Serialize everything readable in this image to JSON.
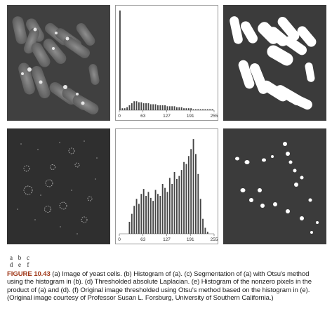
{
  "figure": {
    "label": "FIGURE 10.43",
    "caption": "(a) Image of yeast cells. (b) Histogram of (a). (c) Segmentation of (a) with Otsu's method using the histogram in (b). (d) Thresholded absolute Laplacian. (e) Histogram of the nonzero pixels in the product of (a) and (d). (f) Original image thresholded using Otsu's method based on the histogram in (e). (Original image courtesy of Professor Susan L. Forsburg, University of Southern California.)",
    "panel_legend": [
      "a",
      "b",
      "c",
      "d",
      "e",
      "f"
    ]
  },
  "chart_data": [
    {
      "type": "bar",
      "panel": "b",
      "x_ticks": [
        "0",
        "63",
        "127",
        "191",
        "255"
      ],
      "xlim": [
        0,
        255
      ],
      "values": [
        1.0,
        0.02,
        0.02,
        0.03,
        0.05,
        0.07,
        0.09,
        0.09,
        0.08,
        0.08,
        0.07,
        0.07,
        0.07,
        0.06,
        0.06,
        0.06,
        0.05,
        0.05,
        0.05,
        0.05,
        0.04,
        0.04,
        0.04,
        0.04,
        0.03,
        0.03,
        0.03,
        0.02,
        0.02,
        0.02,
        0.02,
        0.01,
        0.01,
        0.01,
        0.01,
        0.01,
        0.01,
        0.01,
        0.01,
        0.01
      ]
    },
    {
      "type": "bar",
      "panel": "e",
      "x_ticks": [
        "0",
        "63",
        "127",
        "191",
        "255"
      ],
      "xlim": [
        0,
        255
      ],
      "values": [
        0.0,
        0.0,
        0.0,
        0.0,
        0.12,
        0.2,
        0.28,
        0.35,
        0.3,
        0.4,
        0.45,
        0.38,
        0.42,
        0.36,
        0.33,
        0.44,
        0.4,
        0.38,
        0.5,
        0.46,
        0.42,
        0.56,
        0.5,
        0.62,
        0.55,
        0.58,
        0.64,
        0.72,
        0.7,
        0.78,
        0.85,
        0.95,
        0.8,
        0.6,
        0.35,
        0.15,
        0.06,
        0.02,
        0.0,
        0.0
      ]
    }
  ]
}
